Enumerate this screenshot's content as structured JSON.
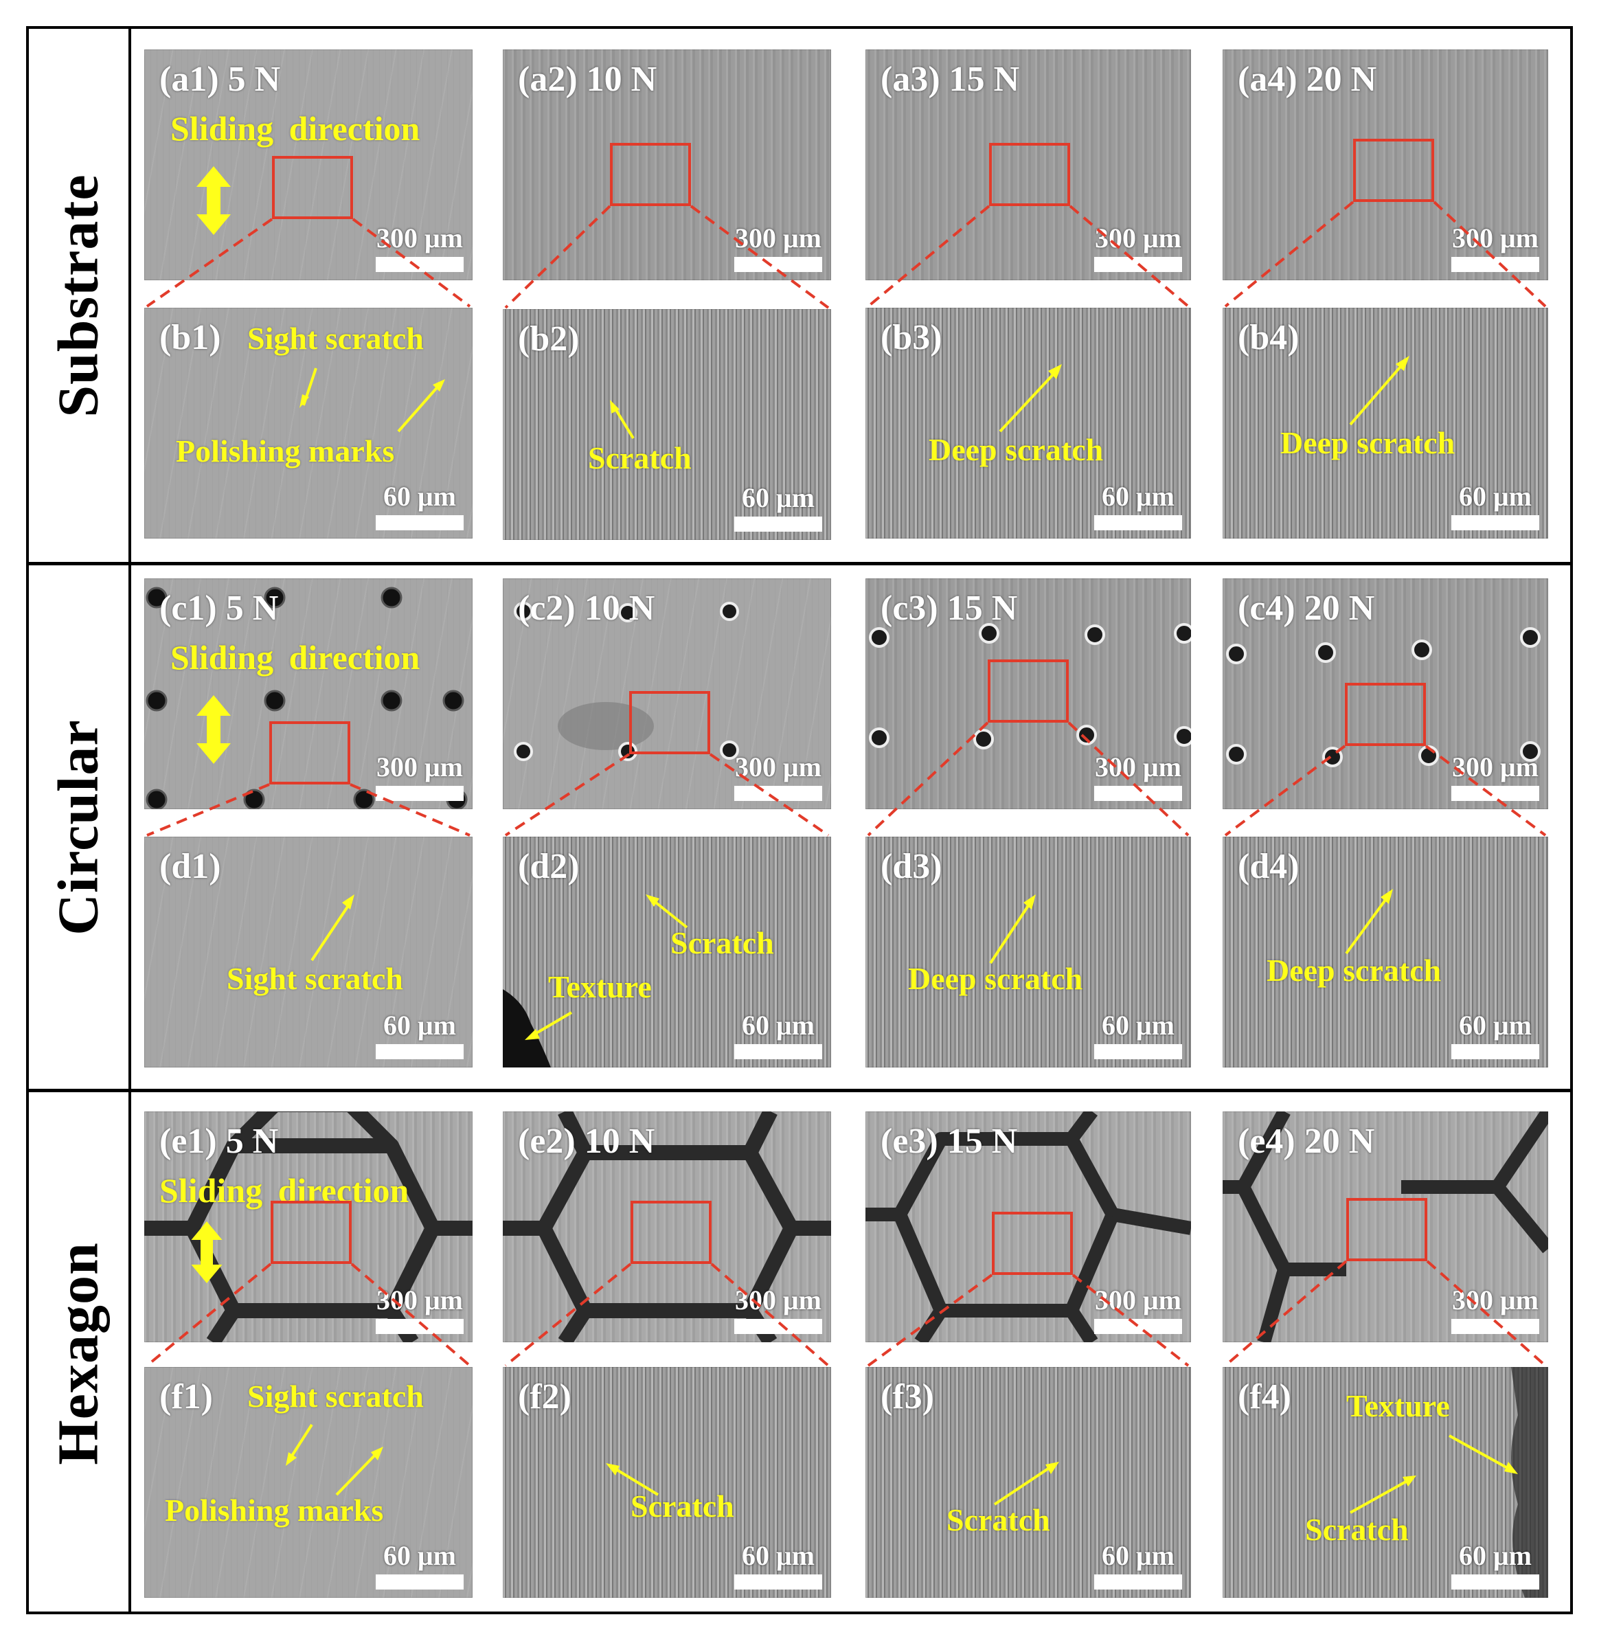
{
  "row_labels": [
    "Substrate",
    "Circular",
    "Hexagon"
  ],
  "sliding_direction": "Sliding  direction",
  "scale_bars": {
    "low_mag": "300 μm",
    "high_mag": "60 μm"
  },
  "panels": {
    "a1": {
      "label": "(a1) 5 N"
    },
    "a2": {
      "label": "(a2) 10 N"
    },
    "a3": {
      "label": "(a3) 15 N"
    },
    "a4": {
      "label": "(a4) 20 N"
    },
    "b1": {
      "label": "(b1)",
      "annotations": [
        "Sight scratch",
        "Polishing marks"
      ]
    },
    "b2": {
      "label": "(b2)",
      "annotations": [
        "Scratch"
      ]
    },
    "b3": {
      "label": "(b3)",
      "annotations": [
        "Deep scratch"
      ]
    },
    "b4": {
      "label": "(b4)",
      "annotations": [
        "Deep scratch"
      ]
    },
    "c1": {
      "label": "(c1) 5 N"
    },
    "c2": {
      "label": "(c2) 10 N"
    },
    "c3": {
      "label": "(c3) 15 N"
    },
    "c4": {
      "label": "(c4) 20 N"
    },
    "d1": {
      "label": "(d1)",
      "annotations": [
        "Sight scratch"
      ]
    },
    "d2": {
      "label": "(d2)",
      "annotations": [
        "Scratch",
        "Texture"
      ]
    },
    "d3": {
      "label": "(d3)",
      "annotations": [
        "Deep scratch"
      ]
    },
    "d4": {
      "label": "(d4)",
      "annotations": [
        "Deep scratch"
      ]
    },
    "e1": {
      "label": "(e1) 5 N"
    },
    "e2": {
      "label": "(e2) 10 N"
    },
    "e3": {
      "label": "(e3) 15 N"
    },
    "e4": {
      "label": "(e4) 20 N"
    },
    "f1": {
      "label": "(f1)",
      "annotations": [
        "Sight scratch",
        "Polishing marks"
      ]
    },
    "f2": {
      "label": "(f2)",
      "annotations": [
        "Scratch"
      ]
    },
    "f3": {
      "label": "(f3)",
      "annotations": [
        "Scratch"
      ]
    },
    "f4": {
      "label": "(f4)",
      "annotations": [
        "Texture",
        "Scratch"
      ]
    }
  },
  "colors": {
    "annotation": "#ffff1a",
    "zoom_box": "#e23b2a",
    "label": "#ffffff"
  }
}
